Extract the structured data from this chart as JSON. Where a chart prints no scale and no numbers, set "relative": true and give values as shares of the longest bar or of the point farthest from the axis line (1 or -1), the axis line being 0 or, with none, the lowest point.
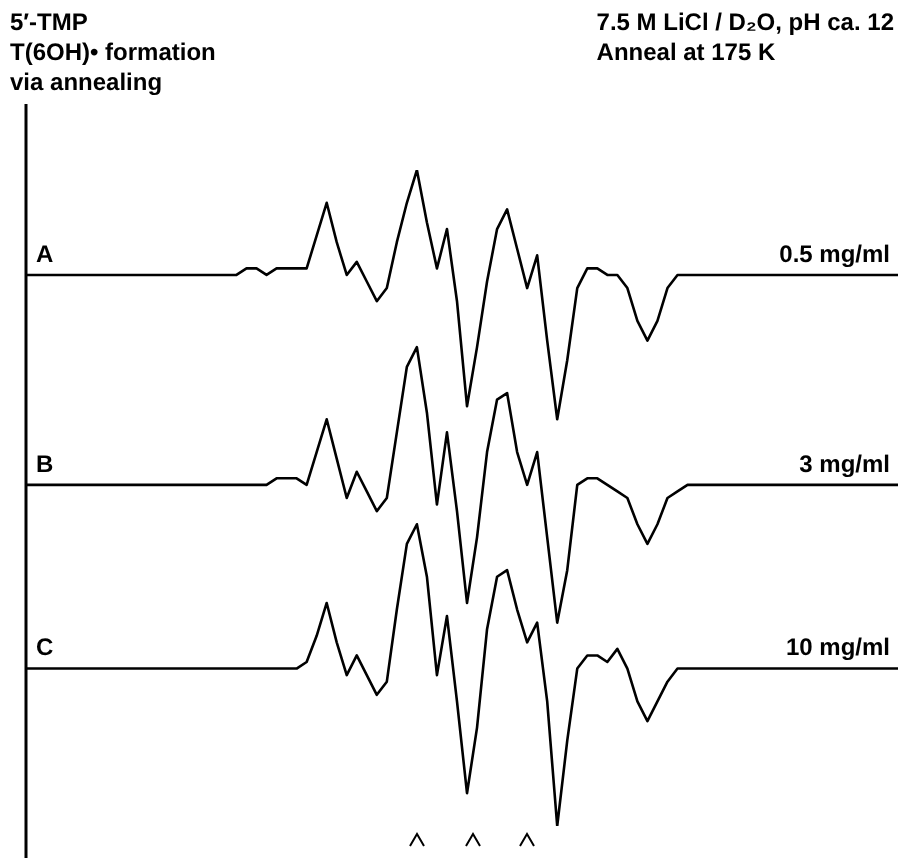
{
  "chart_data": {
    "type": "line",
    "relative": true,
    "title": "5′-TMP",
    "subtitle": "T(6OH)• formation via annealing",
    "legend": false,
    "marker": "none",
    "line_style": "solid",
    "tick_labels": false,
    "categories": [
      null,
      null,
      null,
      null,
      null,
      null,
      null,
      null,
      null,
      null,
      null,
      null,
      null,
      null,
      null,
      null,
      null,
      null,
      null,
      null,
      null,
      null,
      null,
      null,
      null,
      null,
      null,
      null,
      null,
      null,
      null,
      null,
      null,
      null,
      null,
      null,
      null,
      null,
      null,
      null,
      null,
      null,
      null,
      null,
      null,
      null,
      null,
      null,
      null,
      null,
      null,
      null,
      null,
      null,
      null,
      null,
      null,
      null,
      null,
      null,
      null,
      null,
      null,
      null,
      null,
      null,
      null,
      null,
      null,
      null,
      null,
      null,
      null,
      null,
      null,
      null,
      null,
      null,
      null,
      null,
      null,
      null,
      null,
      null,
      null,
      null,
      null,
      null
    ],
    "series": [
      {
        "name": "A",
        "color": "#000000",
        "values": [
          0.84,
          0.84,
          0.84,
          0.84,
          0.84,
          0.84,
          0.84,
          0.84,
          0.84,
          0.84,
          0.84,
          0.84,
          0.84,
          0.84,
          0.84,
          0.84,
          0.84,
          0.84,
          0.84,
          0.84,
          0.84,
          0.84,
          0.85,
          0.85,
          0.84,
          0.85,
          0.85,
          0.85,
          0.85,
          0.9,
          0.95,
          0.89,
          0.84,
          0.86,
          0.83,
          0.8,
          0.82,
          0.89,
          0.95,
          1.0,
          0.92,
          0.85,
          0.91,
          0.8,
          0.64,
          0.73,
          0.83,
          0.91,
          0.94,
          0.88,
          0.82,
          0.87,
          0.74,
          0.62,
          0.71,
          0.82,
          0.85,
          0.85,
          0.84,
          0.84,
          0.82,
          0.77,
          0.74,
          0.77,
          0.82,
          0.84,
          0.84,
          0.84,
          0.84,
          0.84,
          0.84,
          0.84,
          0.84,
          0.84,
          0.84,
          0.84,
          0.84,
          0.84,
          0.84,
          0.84,
          0.84,
          0.84,
          0.84,
          0.84,
          0.84,
          0.84,
          0.84,
          0.84
        ]
      },
      {
        "name": "B",
        "color": "#000000",
        "values": [
          0.52,
          0.52,
          0.52,
          0.52,
          0.52,
          0.52,
          0.52,
          0.52,
          0.52,
          0.52,
          0.52,
          0.52,
          0.52,
          0.52,
          0.52,
          0.52,
          0.52,
          0.52,
          0.52,
          0.52,
          0.52,
          0.52,
          0.52,
          0.52,
          0.52,
          0.53,
          0.53,
          0.53,
          0.52,
          0.57,
          0.62,
          0.56,
          0.5,
          0.54,
          0.51,
          0.48,
          0.5,
          0.6,
          0.7,
          0.73,
          0.63,
          0.49,
          0.6,
          0.48,
          0.34,
          0.44,
          0.57,
          0.65,
          0.66,
          0.57,
          0.52,
          0.57,
          0.44,
          0.31,
          0.39,
          0.52,
          0.53,
          0.53,
          0.52,
          0.51,
          0.5,
          0.46,
          0.43,
          0.46,
          0.5,
          0.51,
          0.52,
          0.52,
          0.52,
          0.52,
          0.52,
          0.52,
          0.52,
          0.52,
          0.52,
          0.52,
          0.52,
          0.52,
          0.52,
          0.52,
          0.52,
          0.52,
          0.52,
          0.52,
          0.52,
          0.52,
          0.52,
          0.52
        ]
      },
      {
        "name": "C",
        "color": "#000000",
        "values": [
          0.24,
          0.24,
          0.24,
          0.24,
          0.24,
          0.24,
          0.24,
          0.24,
          0.24,
          0.24,
          0.24,
          0.24,
          0.24,
          0.24,
          0.24,
          0.24,
          0.24,
          0.24,
          0.24,
          0.24,
          0.24,
          0.24,
          0.24,
          0.24,
          0.24,
          0.24,
          0.24,
          0.24,
          0.25,
          0.29,
          0.34,
          0.28,
          0.23,
          0.26,
          0.23,
          0.2,
          0.22,
          0.33,
          0.43,
          0.46,
          0.38,
          0.23,
          0.32,
          0.19,
          0.05,
          0.15,
          0.3,
          0.38,
          0.39,
          0.33,
          0.28,
          0.31,
          0.19,
          0.0,
          0.13,
          0.24,
          0.26,
          0.26,
          0.25,
          0.27,
          0.24,
          0.19,
          0.16,
          0.19,
          0.22,
          0.24,
          0.24,
          0.24,
          0.24,
          0.24,
          0.24,
          0.24,
          0.24,
          0.24,
          0.24,
          0.24,
          0.24,
          0.24,
          0.24,
          0.24,
          0.24,
          0.24,
          0.24,
          0.24,
          0.24,
          0.24,
          0.24,
          0.24
        ]
      }
    ],
    "annotations": [
      "7.5 M LiCl / D₂O, pH ca. 12",
      "Anneal at 175 K",
      "0.5 mg/ml",
      "3 mg/ml",
      "10 mg/ml"
    ]
  }
}
